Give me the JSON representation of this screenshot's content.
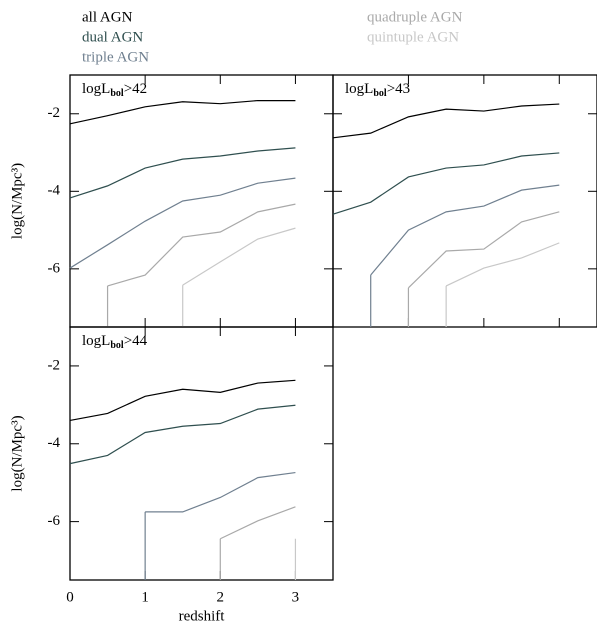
{
  "chart_data": [
    {
      "type": "line",
      "title": {
        "main": "logL",
        "sub": "bol",
        "rest": ">42"
      },
      "ylabel": "log(N/Mpc³)",
      "x": [
        0,
        0.5,
        1,
        1.5,
        2,
        2.5,
        3
      ],
      "xlim": [
        0,
        3.5
      ],
      "ylim": [
        -7.5,
        -1
      ],
      "xticks": [
        0,
        1,
        2,
        3
      ],
      "yticks": [
        -2,
        -4,
        -6
      ],
      "xtick_labels": false,
      "ytick_labels": true,
      "series": [
        {
          "name": "all AGN",
          "color": "#000000",
          "values": [
            -2.26,
            -2.05,
            -1.82,
            -1.69,
            -1.74,
            -1.66,
            -1.66
          ]
        },
        {
          "name": "dual AGN",
          "color": "#2f4f4f",
          "values": [
            -4.17,
            -3.86,
            -3.4,
            -3.17,
            -3.09,
            -2.96,
            -2.88
          ]
        },
        {
          "name": "triple AGN",
          "color": "#708090",
          "values": [
            -5.98,
            -5.38,
            -4.77,
            -4.25,
            -4.1,
            -3.79,
            -3.66
          ]
        },
        {
          "name": "quadruple AGN",
          "color": "#a9a9a9",
          "values": [
            null,
            -6.44,
            -6.16,
            -5.18,
            -5.05,
            -4.53,
            -4.33
          ]
        },
        {
          "name": "quintuple AGN",
          "color": "#c8c8c8",
          "values": [
            null,
            null,
            null,
            -6.42,
            -5.82,
            -5.23,
            -4.95
          ]
        }
      ]
    },
    {
      "type": "line",
      "title": {
        "main": "logL",
        "sub": "bol",
        "rest": ">43"
      },
      "x": [
        0,
        0.5,
        1,
        1.5,
        2,
        2.5,
        3
      ],
      "xlim": [
        0,
        3.5
      ],
      "ylim": [
        -7.5,
        -1
      ],
      "xticks": [
        0,
        1,
        2,
        3
      ],
      "yticks": [
        -2,
        -4,
        -6
      ],
      "xtick_labels": false,
      "ytick_labels": false,
      "series": [
        {
          "color": "#000000",
          "values": [
            -2.62,
            -2.5,
            -2.08,
            -1.88,
            -1.93,
            -1.8,
            -1.75
          ]
        },
        {
          "color": "#2f4f4f",
          "values": [
            -4.59,
            -4.28,
            -3.63,
            -3.4,
            -3.32,
            -3.09,
            -3.01
          ]
        },
        {
          "color": "#708090",
          "values": [
            null,
            -6.16,
            -5.0,
            -4.53,
            -4.38,
            -3.97,
            -3.84
          ]
        },
        {
          "color": "#a9a9a9",
          "values": [
            null,
            null,
            -6.49,
            -5.54,
            -5.49,
            -4.79,
            -4.53
          ]
        },
        {
          "color": "#c8c8c8",
          "values": [
            null,
            null,
            null,
            -6.44,
            -5.98,
            -5.72,
            -5.33
          ]
        }
      ]
    },
    {
      "type": "line",
      "title": {
        "main": "logL",
        "sub": "bol",
        "rest": ">44"
      },
      "ylabel": "log(N/Mpc³)",
      "xlabel": "redshift",
      "x": [
        0,
        0.5,
        1,
        1.5,
        2,
        2.5,
        3
      ],
      "xlim": [
        0,
        3.5
      ],
      "ylim": [
        -7.5,
        -1
      ],
      "xticks": [
        0,
        1,
        2,
        3
      ],
      "yticks": [
        -2,
        -4,
        -6
      ],
      "xtick_labels": true,
      "ytick_labels": true,
      "series": [
        {
          "color": "#000000",
          "values": [
            -3.4,
            -3.22,
            -2.78,
            -2.6,
            -2.68,
            -2.44,
            -2.37
          ]
        },
        {
          "color": "#2f4f4f",
          "values": [
            -4.51,
            -4.3,
            -3.71,
            -3.55,
            -3.48,
            -3.11,
            -3.01
          ]
        },
        {
          "color": "#708090",
          "values": [
            null,
            null,
            -5.75,
            -5.75,
            -5.38,
            -4.87,
            -4.74
          ]
        },
        {
          "color": "#a9a9a9",
          "values": [
            null,
            null,
            null,
            null,
            -6.44,
            -5.98,
            -5.62
          ]
        },
        {
          "color": "#c8c8c8",
          "values": [
            null,
            null,
            null,
            null,
            null,
            null,
            -6.44
          ]
        }
      ]
    }
  ]
}
